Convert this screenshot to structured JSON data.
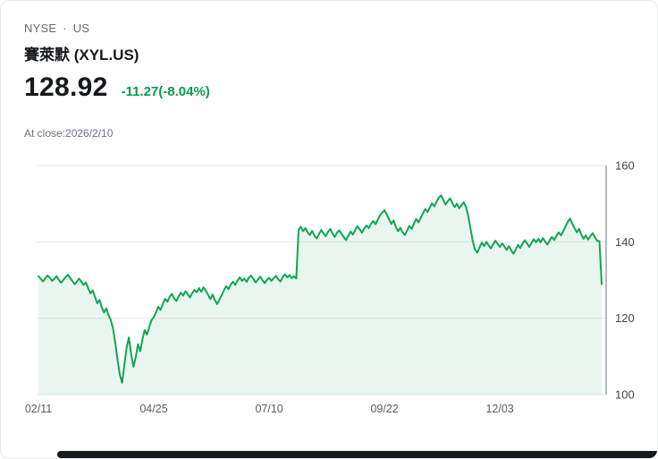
{
  "header": {
    "exchange": "NYSE",
    "separator": "·",
    "region": "US",
    "title": "賽萊默 (XYL.US)"
  },
  "quote": {
    "price": "128.92",
    "change_text": "-11.27(-8.04%)",
    "change_color": "#0a9b4b",
    "close_note": "At close:2026/2/10"
  },
  "chart_data": {
    "type": "area",
    "title": "",
    "xlabel": "",
    "ylabel": "",
    "ylim": [
      100,
      160
    ],
    "y_ticks": [
      100,
      120,
      140,
      160
    ],
    "x_tick_labels": [
      "02/11",
      "04/25",
      "07/10",
      "09/22",
      "12/03"
    ],
    "x_tick_indices": [
      0,
      51,
      102,
      153,
      204
    ],
    "grid": "horizontal",
    "legend": "none",
    "line_color": "#0fa651",
    "fill_color": "rgba(16,160,80,0.09)",
    "grid_color": "#e6e8ea",
    "axis_color": "#868c93",
    "values": [
      131.0,
      130.4,
      129.6,
      130.5,
      131.2,
      130.6,
      129.8,
      130.3,
      131.0,
      130.1,
      129.3,
      130.0,
      130.8,
      131.4,
      130.6,
      129.7,
      128.9,
      129.6,
      130.4,
      129.5,
      128.7,
      129.4,
      127.8,
      126.5,
      127.3,
      125.6,
      123.9,
      124.8,
      122.9,
      121.5,
      122.6,
      120.8,
      119.5,
      117.2,
      113.5,
      108.9,
      105.2,
      103.1,
      107.8,
      112.4,
      115.0,
      110.6,
      107.3,
      109.8,
      113.2,
      111.4,
      114.6,
      116.9,
      115.7,
      117.8,
      119.5,
      120.3,
      121.6,
      123.0,
      122.2,
      123.8,
      125.1,
      124.3,
      125.6,
      126.4,
      125.2,
      124.5,
      125.8,
      126.7,
      125.9,
      127.1,
      126.3,
      125.4,
      126.6,
      127.4,
      126.8,
      127.9,
      126.9,
      128.1,
      127.2,
      126.1,
      125.0,
      126.2,
      124.8,
      123.7,
      124.9,
      126.0,
      127.3,
      128.4,
      127.6,
      128.8,
      129.6,
      128.7,
      129.9,
      130.7,
      129.8,
      130.4,
      129.5,
      130.6,
      131.2,
      130.3,
      129.4,
      130.1,
      130.9,
      130.0,
      129.2,
      130.0,
      130.6,
      129.8,
      130.5,
      131.1,
      130.2,
      129.6,
      130.8,
      131.5,
      130.7,
      131.3,
      130.5,
      131.0,
      130.4,
      143.2,
      144.0,
      142.8,
      143.6,
      142.5,
      141.8,
      142.9,
      141.6,
      140.9,
      142.0,
      143.1,
      142.3,
      141.5,
      142.6,
      143.4,
      142.2,
      141.3,
      142.4,
      143.0,
      142.1,
      141.2,
      140.5,
      141.6,
      142.7,
      141.9,
      143.0,
      144.1,
      143.3,
      142.4,
      143.5,
      144.3,
      143.6,
      144.7,
      145.5,
      144.6,
      145.8,
      146.9,
      147.7,
      148.3,
      147.2,
      145.9,
      144.7,
      145.6,
      143.9,
      142.8,
      143.7,
      142.5,
      141.8,
      143.0,
      144.2,
      143.4,
      144.8,
      146.0,
      145.1,
      146.3,
      147.5,
      148.6,
      147.8,
      149.0,
      150.1,
      149.3,
      150.5,
      151.6,
      152.2,
      150.9,
      149.8,
      150.7,
      151.4,
      150.2,
      149.1,
      150.0,
      148.8,
      149.6,
      150.4,
      149.2,
      146.8,
      143.5,
      140.2,
      138.0,
      137.2,
      138.5,
      139.8,
      138.9,
      140.0,
      139.1,
      138.3,
      139.4,
      140.3,
      139.5,
      138.7,
      139.6,
      138.8,
      137.9,
      138.9,
      137.8,
      136.9,
      138.0,
      139.2,
      138.4,
      139.5,
      140.4,
      139.6,
      138.7,
      139.8,
      140.7,
      139.9,
      140.8,
      139.9,
      141.0,
      140.1,
      139.3,
      140.4,
      141.3,
      140.5,
      141.6,
      142.5,
      141.7,
      142.8,
      144.0,
      145.2,
      146.1,
      144.8,
      143.6,
      142.5,
      143.4,
      141.9,
      140.8,
      141.7,
      140.6,
      141.5,
      142.3,
      141.2,
      140.3,
      140.19,
      128.92
    ]
  }
}
